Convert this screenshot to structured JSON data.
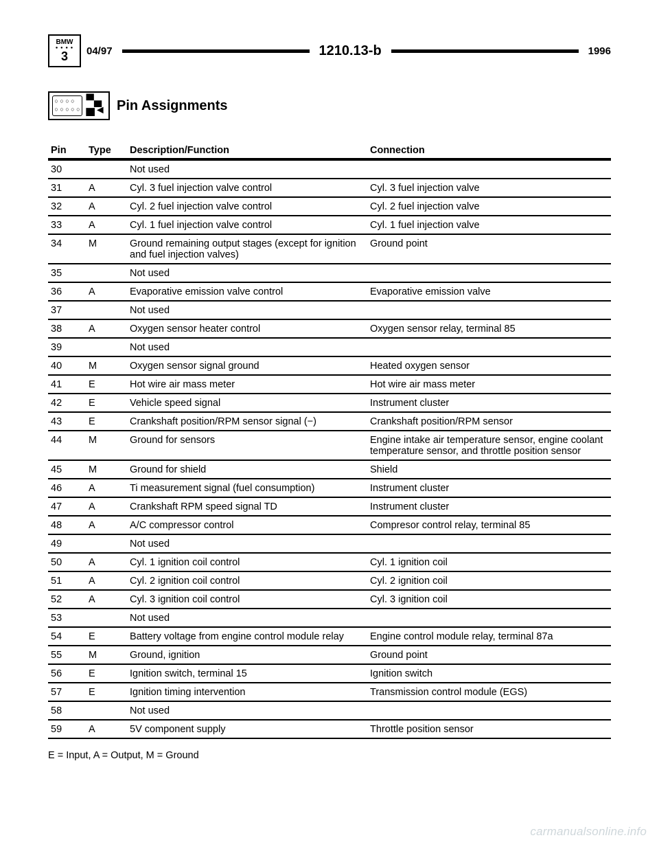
{
  "header": {
    "brand_top": "BMW",
    "brand_bottom": "3",
    "date": "04/97",
    "code": "1210.13-b",
    "year": "1996"
  },
  "section": {
    "title": "Pin Assignments"
  },
  "table": {
    "columns": [
      "Pin",
      "Type",
      "Description/Function",
      "Connection"
    ],
    "rows": [
      {
        "pin": "30",
        "type": "",
        "desc": "Not used",
        "conn": ""
      },
      {
        "pin": "31",
        "type": "A",
        "desc": "Cyl. 3 fuel injection valve control",
        "conn": "Cyl. 3 fuel injection valve"
      },
      {
        "pin": "32",
        "type": "A",
        "desc": "Cyl. 2 fuel injection valve control",
        "conn": "Cyl. 2 fuel injection valve"
      },
      {
        "pin": "33",
        "type": "A",
        "desc": "Cyl. 1 fuel injection valve control",
        "conn": "Cyl. 1 fuel injection valve"
      },
      {
        "pin": "34",
        "type": "M",
        "desc": "Ground remaining output stages (except for ignition and fuel injection valves)",
        "conn": "Ground point"
      },
      {
        "pin": "35",
        "type": "",
        "desc": "Not used",
        "conn": ""
      },
      {
        "pin": "36",
        "type": "A",
        "desc": "Evaporative emission valve control",
        "conn": "Evaporative emission valve"
      },
      {
        "pin": "37",
        "type": "",
        "desc": "Not used",
        "conn": ""
      },
      {
        "pin": "38",
        "type": "A",
        "desc": "Oxygen sensor heater control",
        "conn": "Oxygen sensor relay, terminal 85"
      },
      {
        "pin": "39",
        "type": "",
        "desc": "Not used",
        "conn": ""
      },
      {
        "pin": "40",
        "type": "M",
        "desc": "Oxygen sensor signal ground",
        "conn": "Heated oxygen sensor"
      },
      {
        "pin": "41",
        "type": "E",
        "desc": "Hot wire air mass meter",
        "conn": "Hot wire air mass meter"
      },
      {
        "pin": "42",
        "type": "E",
        "desc": "Vehicle speed signal",
        "conn": "Instrument cluster"
      },
      {
        "pin": "43",
        "type": "E",
        "desc": "Crankshaft position/RPM sensor signal (−)",
        "conn": "Crankshaft position/RPM sensor"
      },
      {
        "pin": "44",
        "type": "M",
        "desc": "Ground for sensors",
        "conn": "Engine intake air temperature sensor, engine coolant temperature sensor, and throttle position sensor"
      },
      {
        "pin": "45",
        "type": "M",
        "desc": "Ground for shield",
        "conn": "Shield"
      },
      {
        "pin": "46",
        "type": "A",
        "desc": "Ti measurement signal (fuel consumption)",
        "conn": "Instrument cluster"
      },
      {
        "pin": "47",
        "type": "A",
        "desc": "Crankshaft RPM speed signal TD",
        "conn": "Instrument cluster"
      },
      {
        "pin": "48",
        "type": "A",
        "desc": "A/C compressor control",
        "conn": "Compresor control relay, terminal 85"
      },
      {
        "pin": "49",
        "type": "",
        "desc": "Not used",
        "conn": ""
      },
      {
        "pin": "50",
        "type": "A",
        "desc": "Cyl. 1 ignition coil control",
        "conn": "Cyl. 1 ignition coil"
      },
      {
        "pin": "51",
        "type": "A",
        "desc": "Cyl. 2 ignition coil control",
        "conn": "Cyl. 2 ignition coil"
      },
      {
        "pin": "52",
        "type": "A",
        "desc": "Cyl. 3 ignition coil control",
        "conn": "Cyl. 3 ignition coil"
      },
      {
        "pin": "53",
        "type": "",
        "desc": "Not used",
        "conn": ""
      },
      {
        "pin": "54",
        "type": "E",
        "desc": "Battery voltage from engine control module relay",
        "conn": "Engine control module relay, terminal 87a"
      },
      {
        "pin": "55",
        "type": "M",
        "desc": "Ground, ignition",
        "conn": "Ground point"
      },
      {
        "pin": "56",
        "type": "E",
        "desc": "Ignition switch, terminal 15",
        "conn": "Ignition switch"
      },
      {
        "pin": "57",
        "type": "E",
        "desc": "Ignition timing intervention",
        "conn": "Transmission control module (EGS)"
      },
      {
        "pin": "58",
        "type": "",
        "desc": "Not used",
        "conn": ""
      },
      {
        "pin": "59",
        "type": "A",
        "desc": "5V component supply",
        "conn": "Throttle position sensor"
      }
    ]
  },
  "legend": "E = Input, A = Output, M = Ground",
  "watermark": "carmanualsonline.info"
}
